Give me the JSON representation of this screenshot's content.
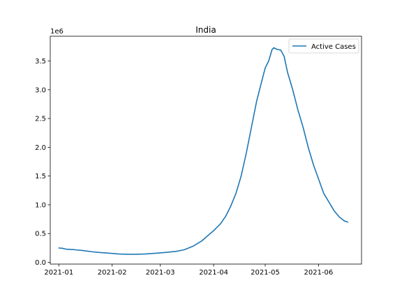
{
  "chart_data": {
    "type": "line",
    "title": "India",
    "xlabel": "",
    "ylabel": "",
    "y_offset_label": "1e6",
    "x_ticks": [
      {
        "label": "2021-01",
        "date": "2021-01-01"
      },
      {
        "label": "2021-02",
        "date": "2021-02-01"
      },
      {
        "label": "2021-03",
        "date": "2021-03-01"
      },
      {
        "label": "2021-04",
        "date": "2021-04-01"
      },
      {
        "label": "2021-05",
        "date": "2021-05-01"
      },
      {
        "label": "2021-06",
        "date": "2021-06-01"
      }
    ],
    "y_ticks": [
      {
        "label": "0.0",
        "value": 0.0
      },
      {
        "label": "0.5",
        "value": 0.5
      },
      {
        "label": "1.0",
        "value": 1.0
      },
      {
        "label": "1.5",
        "value": 1.5
      },
      {
        "label": "2.0",
        "value": 2.0
      },
      {
        "label": "2.5",
        "value": 2.5
      },
      {
        "label": "3.0",
        "value": 3.0
      },
      {
        "label": "3.5",
        "value": 3.5
      }
    ],
    "xlim": [
      "2020-12-27",
      "2021-06-26"
    ],
    "ylim": [
      -0.03,
      3.93
    ],
    "grid": false,
    "legend_position": "upper right",
    "series": [
      {
        "name": "Active Cases",
        "color": "#1f77b4",
        "points": [
          [
            "2021-01-01",
            0.25
          ],
          [
            "2021-01-03",
            0.245
          ],
          [
            "2021-01-05",
            0.23
          ],
          [
            "2021-01-10",
            0.22
          ],
          [
            "2021-01-15",
            0.205
          ],
          [
            "2021-01-20",
            0.185
          ],
          [
            "2021-01-25",
            0.17
          ],
          [
            "2021-01-30",
            0.16
          ],
          [
            "2021-02-05",
            0.145
          ],
          [
            "2021-02-10",
            0.14
          ],
          [
            "2021-02-15",
            0.14
          ],
          [
            "2021-02-20",
            0.145
          ],
          [
            "2021-02-25",
            0.155
          ],
          [
            "2021-03-01",
            0.165
          ],
          [
            "2021-03-05",
            0.175
          ],
          [
            "2021-03-10",
            0.19
          ],
          [
            "2021-03-15",
            0.22
          ],
          [
            "2021-03-20",
            0.28
          ],
          [
            "2021-03-25",
            0.37
          ],
          [
            "2021-03-30",
            0.5
          ],
          [
            "2021-04-01",
            0.55
          ],
          [
            "2021-04-05",
            0.67
          ],
          [
            "2021-04-08",
            0.8
          ],
          [
            "2021-04-11",
            0.98
          ],
          [
            "2021-04-14",
            1.2
          ],
          [
            "2021-04-17",
            1.5
          ],
          [
            "2021-04-20",
            1.9
          ],
          [
            "2021-04-23",
            2.35
          ],
          [
            "2021-04-26",
            2.8
          ],
          [
            "2021-04-29",
            3.15
          ],
          [
            "2021-05-01",
            3.38
          ],
          [
            "2021-05-03",
            3.5
          ],
          [
            "2021-05-05",
            3.7
          ],
          [
            "2021-05-06",
            3.73
          ],
          [
            "2021-05-08",
            3.7
          ],
          [
            "2021-05-10",
            3.69
          ],
          [
            "2021-05-12",
            3.58
          ],
          [
            "2021-05-14",
            3.3
          ],
          [
            "2021-05-17",
            3.0
          ],
          [
            "2021-05-20",
            2.65
          ],
          [
            "2021-05-23",
            2.35
          ],
          [
            "2021-05-26",
            2.0
          ],
          [
            "2021-05-29",
            1.7
          ],
          [
            "2021-06-01",
            1.45
          ],
          [
            "2021-06-04",
            1.2
          ],
          [
            "2021-06-07",
            1.05
          ],
          [
            "2021-06-10",
            0.9
          ],
          [
            "2021-06-13",
            0.79
          ],
          [
            "2021-06-16",
            0.72
          ],
          [
            "2021-06-18",
            0.7
          ]
        ]
      }
    ]
  }
}
